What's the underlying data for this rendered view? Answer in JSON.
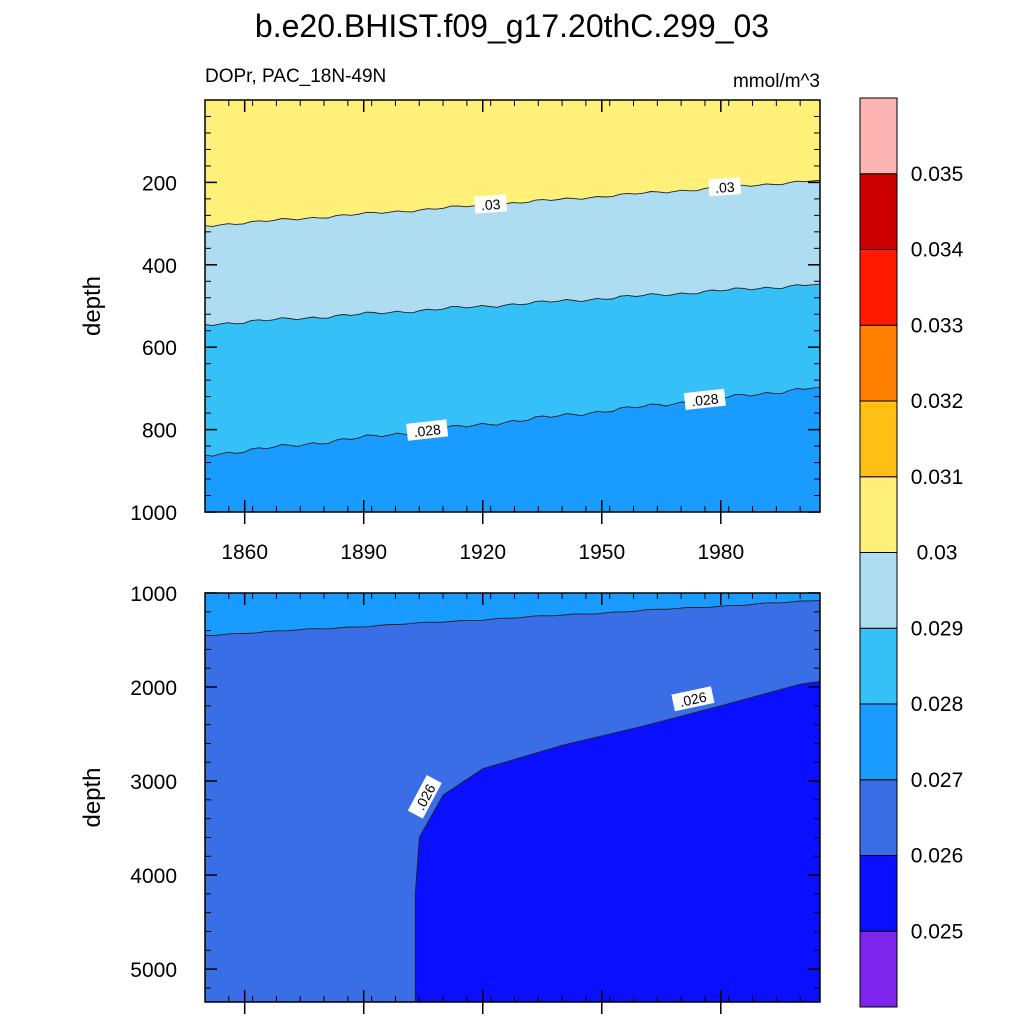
{
  "title": "b.e20.BHIST.f09_g17.20thC.299_03",
  "subtitle_left": "DOPr, PAC_18N-49N",
  "subtitle_right": "mmol/m^3",
  "chart_data": [
    {
      "type": "contour",
      "name": "upper-panel",
      "xlabel": "",
      "ylabel": "depth",
      "xlim": [
        1850,
        2005
      ],
      "ylim": [
        1000,
        0
      ],
      "xticks": [
        1860,
        1890,
        1920,
        1950,
        1980
      ],
      "yticks": [
        200,
        400,
        600,
        800,
        1000
      ],
      "contours": [
        {
          "level": 0.03,
          "label": ".03",
          "depth_1850": 305,
          "depth_2005": 195,
          "labels_at": [
            1922,
            1981
          ]
        },
        {
          "level": 0.029,
          "label": "",
          "depth_1850": 545,
          "depth_2005": 447,
          "labels_at": []
        },
        {
          "level": 0.028,
          "label": ".028",
          "depth_1850": 862,
          "depth_2005": 697,
          "labels_at": [
            1906,
            1976
          ]
        }
      ],
      "bands": [
        {
          "range": [
            0.03,
            0.031
          ],
          "region": "above .03 contour"
        },
        {
          "range": [
            0.029,
            0.03
          ],
          "region": "between .03 and .029"
        },
        {
          "range": [
            0.028,
            0.029
          ],
          "region": "between .029 and .028"
        },
        {
          "range": [
            0.027,
            0.028
          ],
          "region": "below .028 contour"
        }
      ]
    },
    {
      "type": "contour",
      "name": "lower-panel",
      "xlabel": "",
      "ylabel": "depth",
      "xlim": [
        1850,
        2005
      ],
      "ylim": [
        5350,
        1000
      ],
      "xticks": [
        1860,
        1890,
        1920,
        1950,
        1980
      ],
      "yticks": [
        1000,
        2000,
        3000,
        4000,
        5000
      ],
      "contours": [
        {
          "level": 0.027,
          "label": "",
          "depth_1850": 1450,
          "depth_2005": 1080,
          "labels_at": []
        },
        {
          "level": 0.026,
          "label": ".026",
          "labels_at": [
            1905,
            1973
          ],
          "curve": [
            [
              1903,
              5350
            ],
            [
              1903,
              4200
            ],
            [
              1904,
              3600
            ],
            [
              1910,
              3150
            ],
            [
              1920,
              2870
            ],
            [
              1940,
              2620
            ],
            [
              1960,
              2420
            ],
            [
              1980,
              2200
            ],
            [
              2000,
              1970
            ],
            [
              2005,
              1940
            ]
          ]
        }
      ],
      "bands": [
        {
          "range": [
            0.027,
            0.028
          ],
          "region": "top strip"
        },
        {
          "range": [
            0.026,
            0.027
          ],
          "region": "middle"
        },
        {
          "range": [
            0.025,
            0.026
          ],
          "region": "deep region after 1903"
        }
      ]
    }
  ],
  "colorbar": {
    "levels": [
      "0.025",
      "0.026",
      "0.027",
      "0.028",
      "0.029",
      "0.03",
      "0.031",
      "0.032",
      "0.033",
      "0.034",
      "0.035"
    ],
    "colors": [
      "#7e25ed",
      "#0a10ff",
      "#3a6ee6",
      "#1a9bff",
      "#36c0f8",
      "#aedcf1",
      "#fff07a",
      "#ffbf14",
      "#ff7f00",
      "#ff1a00",
      "#cc0000",
      "#ffb4b4"
    ]
  }
}
